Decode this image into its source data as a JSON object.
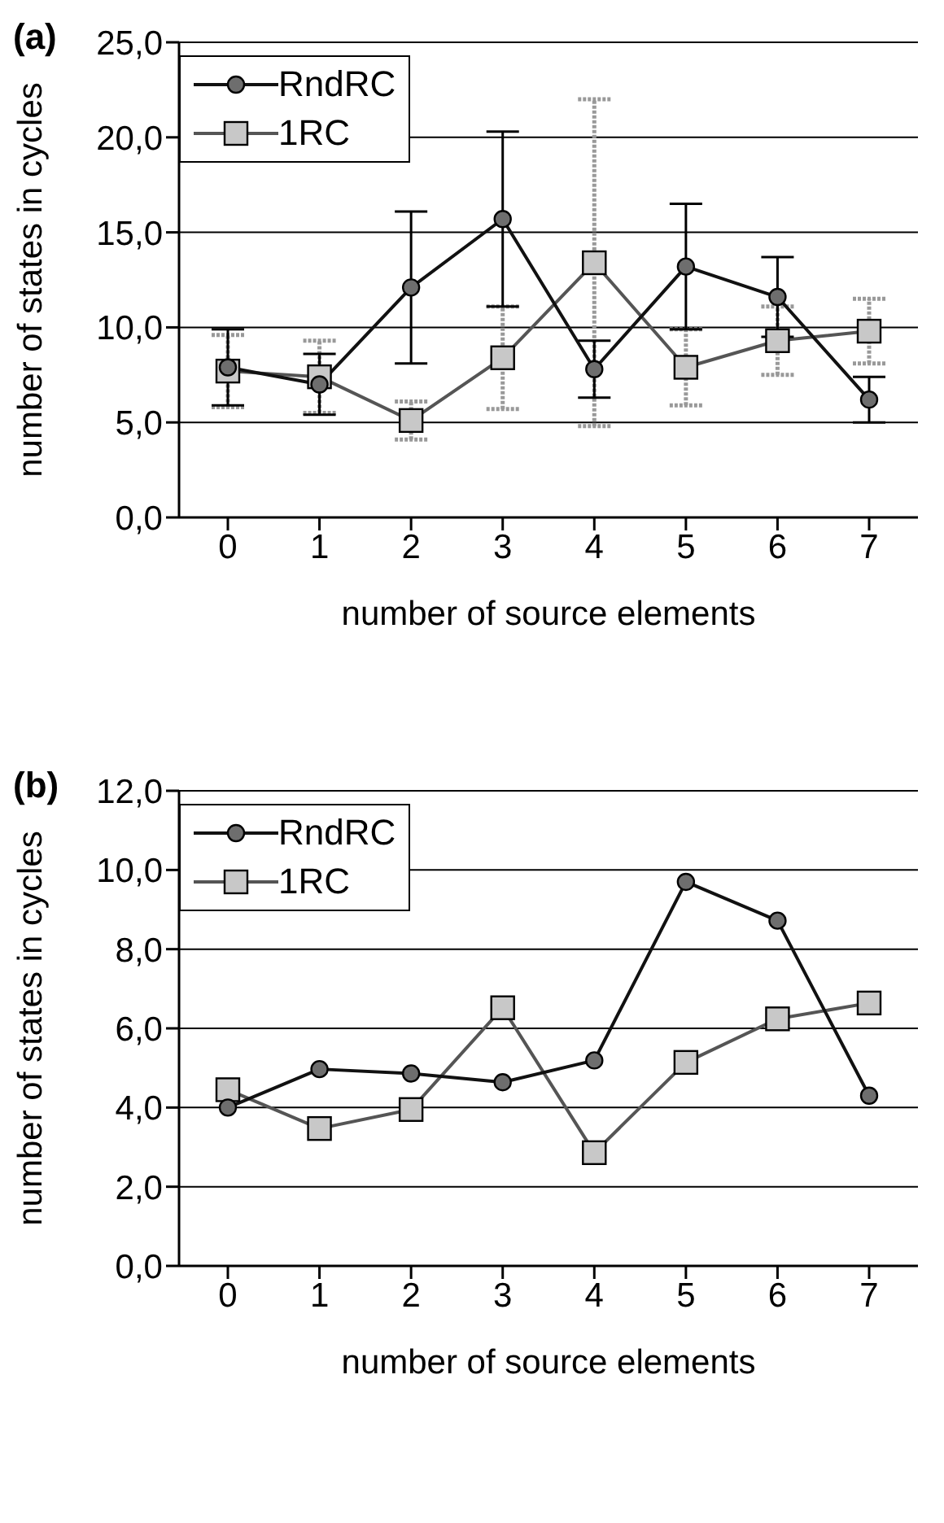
{
  "chart_data": [
    {
      "type": "line",
      "annotations": [
        "(a)"
      ],
      "xlabel": "number of source elements",
      "ylabel": "number of states in cycles",
      "categories": [
        "0",
        "1",
        "2",
        "3",
        "4",
        "5",
        "6",
        "7"
      ],
      "ylim": [
        0,
        25
      ],
      "yticks": [
        {
          "value": 0,
          "label": "0,0"
        },
        {
          "value": 5,
          "label": "5,0"
        },
        {
          "value": 10,
          "label": "10,0"
        },
        {
          "value": 15,
          "label": "15,0"
        },
        {
          "value": 20,
          "label": "20,0"
        },
        {
          "value": 25,
          "label": "25,0"
        }
      ],
      "grid": "y",
      "legend": "top left",
      "series": [
        {
          "name": "RndRC",
          "color": "#6e6e6e",
          "marker": "circle",
          "values": [
            7.9,
            7.0,
            12.1,
            15.7,
            7.8,
            13.2,
            11.6,
            6.2
          ],
          "errors": [
            2.0,
            1.6,
            4.0,
            4.6,
            1.5,
            3.3,
            2.1,
            1.2
          ]
        },
        {
          "name": "1RC",
          "color": "#c8c8c8",
          "marker": "square",
          "values": [
            7.7,
            7.4,
            5.1,
            8.4,
            13.4,
            7.9,
            9.3,
            9.8
          ],
          "errors": [
            1.9,
            1.9,
            1.0,
            2.7,
            8.6,
            2.0,
            1.8,
            1.7
          ]
        }
      ]
    },
    {
      "type": "line",
      "annotations": [
        "(b)"
      ],
      "xlabel": "number of source elements",
      "ylabel": "number of states in cycles",
      "categories": [
        "0",
        "1",
        "2",
        "3",
        "4",
        "5",
        "6",
        "7"
      ],
      "ylim": [
        0,
        12
      ],
      "yticks": [
        {
          "value": 0,
          "label": "0,0"
        },
        {
          "value": 2,
          "label": "2,0"
        },
        {
          "value": 4,
          "label": "4,0"
        },
        {
          "value": 6,
          "label": "6,0"
        },
        {
          "value": 8,
          "label": "8,0"
        },
        {
          "value": 10,
          "label": "10,0"
        },
        {
          "value": 12,
          "label": "12,0"
        }
      ],
      "grid": "y",
      "legend": "top left",
      "series": [
        {
          "name": "RndRC",
          "color": "#6e6e6e",
          "marker": "circle",
          "values": [
            4.0,
            4.97,
            4.86,
            4.64,
            5.19,
            9.7,
            8.72,
            4.3
          ]
        },
        {
          "name": "1RC",
          "color": "#c8c8c8",
          "marker": "square",
          "values": [
            4.45,
            3.47,
            3.95,
            6.52,
            2.86,
            5.14,
            6.24,
            6.64
          ]
        }
      ]
    }
  ]
}
